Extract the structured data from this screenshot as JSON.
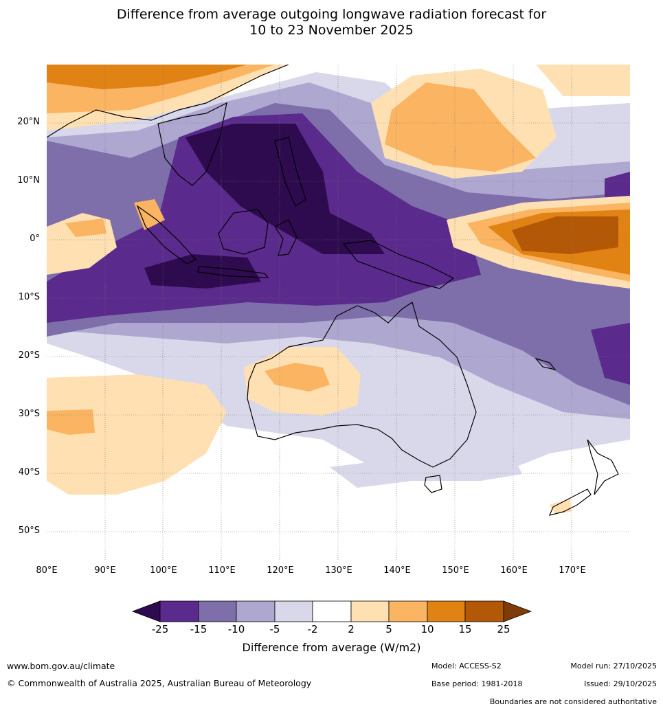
{
  "title_line1": "Difference from average outgoing longwave radiation forecast for",
  "title_line2": "10 to 23 November 2025",
  "lat_labels": [
    "20°N",
    "10°N",
    "0°",
    "10°S",
    "20°S",
    "30°S",
    "40°S",
    "50°S"
  ],
  "lon_labels": [
    "80°E",
    "90°E",
    "100°E",
    "110°E",
    "120°E",
    "130°E",
    "140°E",
    "150°E",
    "160°E",
    "170°E"
  ],
  "colorbar": {
    "ticks": [
      "-25",
      "-15",
      "-10",
      "-5",
      "-2",
      "2",
      "5",
      "10",
      "15",
      "25"
    ],
    "colors": [
      "#2e0a4f",
      "#5a2a8c",
      "#7e6fab",
      "#aea7d0",
      "#d8d8ea",
      "#ffffff",
      "#ffe0b3",
      "#fbb462",
      "#e08214",
      "#b35806",
      "#7f3b08"
    ],
    "title": "Difference from average (W/m2)"
  },
  "footer": {
    "website": "www.bom.gov.au/climate",
    "copyright": "© Commonwealth of Australia 2025, Australian Bureau of Meteorology",
    "model": "Model: ACCESS-S2",
    "model_run": "Model run: 27/10/2025",
    "base_period": "Base period: 1981-2018",
    "issued": "Issued: 29/10/2025",
    "disclaimer": "Boundaries are not considered authoritative"
  }
}
